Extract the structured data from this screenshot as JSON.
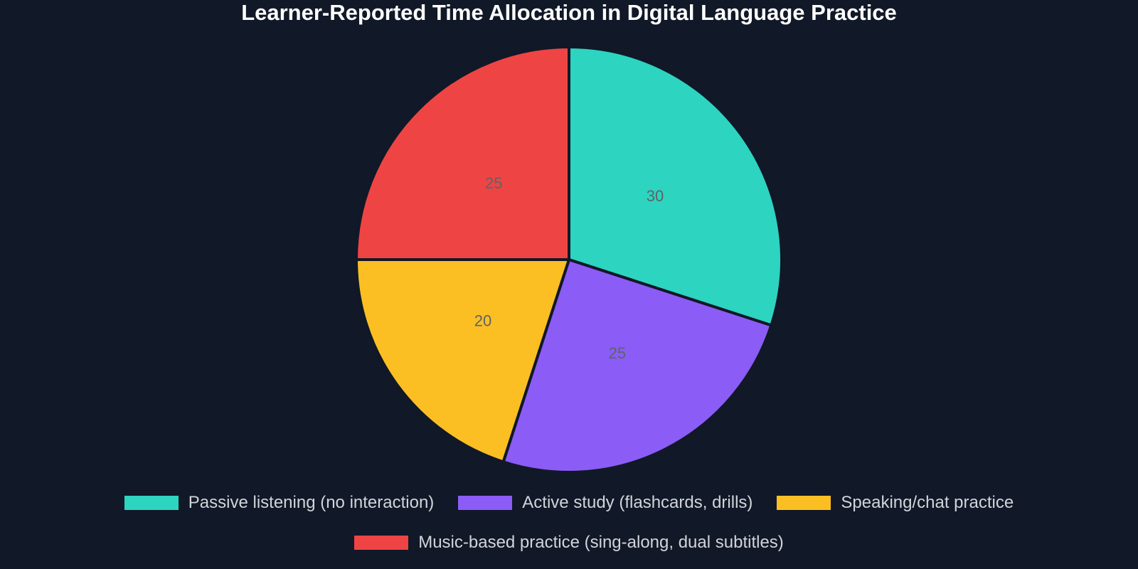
{
  "chart_data": {
    "type": "pie",
    "title": "Learner-Reported Time Allocation in Digital Language Practice",
    "categories": [
      "Passive listening (no interaction)",
      "Active study (flashcards, drills)",
      "Speaking/chat practice",
      "Music-based practice (sing-along, dual subtitles)"
    ],
    "values": [
      30,
      25,
      20,
      25
    ],
    "colors": [
      "#2dd4bf",
      "#8b5cf6",
      "#fbbf24",
      "#ef4444"
    ],
    "legend": "bottom"
  }
}
